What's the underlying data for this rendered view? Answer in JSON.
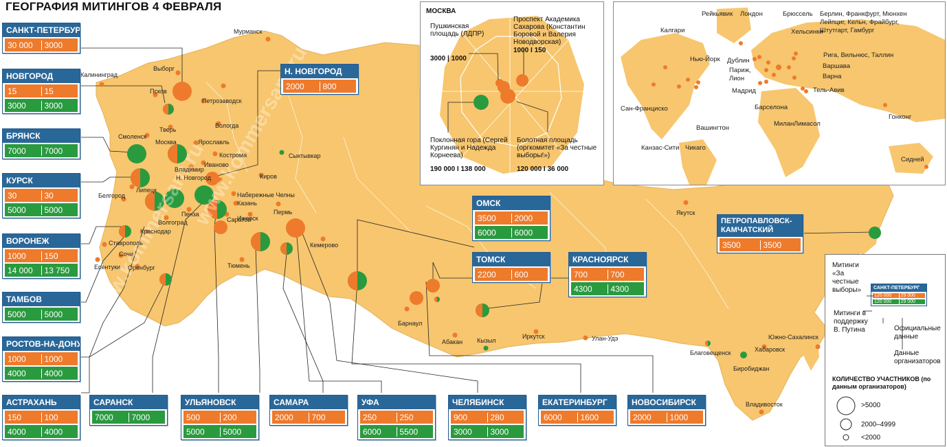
{
  "title": "ГЕОГРАФИЯ МИТИНГОВ  4  ФЕВРАЛЯ",
  "watermark": "www.kommersant.ru",
  "colors": {
    "orange": "#ee7a2b",
    "green": "#2a9a3f",
    "blue": "#2a6799",
    "land": "#f7c66e"
  },
  "boxes": [
    {
      "name": "САНКТ-ПЕТЕРБУРГ",
      "o": [
        "30 000",
        "3000"
      ]
    },
    {
      "name": "НОВГОРОД",
      "o": [
        "15",
        "15"
      ],
      "g": [
        "3000",
        "3000"
      ]
    },
    {
      "name": "БРЯНСК",
      "g": [
        "7000",
        "7000"
      ]
    },
    {
      "name": "КУРСК",
      "o": [
        "30",
        "30"
      ],
      "g": [
        "5000",
        "5000"
      ]
    },
    {
      "name": "ВОРОНЕЖ",
      "o": [
        "1000",
        "150"
      ],
      "g": [
        "14 000",
        "13 750"
      ]
    },
    {
      "name": "ТАМБОВ",
      "g": [
        "5000",
        "5000"
      ]
    },
    {
      "name": "РОСТОВ-НА-ДОНУ",
      "o": [
        "1000",
        "1000"
      ],
      "g": [
        "4000",
        "4000"
      ]
    },
    {
      "name": "АСТРАХАНЬ",
      "o": [
        "150",
        "100"
      ],
      "g": [
        "4000",
        "4000"
      ]
    },
    {
      "name": "САРАНСК",
      "g": [
        "7000",
        "7000"
      ]
    },
    {
      "name": "УЛЬЯНОВСК",
      "o": [
        "500",
        "200"
      ],
      "g": [
        "5000",
        "5000"
      ]
    },
    {
      "name": "САМАРА",
      "o": [
        "2000",
        "700"
      ]
    },
    {
      "name": "УФА",
      "o": [
        "250",
        "250"
      ],
      "g": [
        "6000",
        "5500"
      ]
    },
    {
      "name": "ЧЕЛЯБИНСК",
      "o": [
        "900",
        "280"
      ],
      "g": [
        "3000",
        "3000"
      ]
    },
    {
      "name": "ЕКАТЕРИНБУРГ",
      "o": [
        "6000",
        "1600"
      ]
    },
    {
      "name": "НОВОСИБИРСК",
      "o": [
        "2000",
        "1000"
      ]
    },
    {
      "name": "Н. НОВГОРОД",
      "o": [
        "2000",
        "800"
      ]
    },
    {
      "name": "ОМСК",
      "o": [
        "3500",
        "2000"
      ],
      "g": [
        "6000",
        "6000"
      ]
    },
    {
      "name": "ТОМСК",
      "o": [
        "2200",
        "600"
      ]
    },
    {
      "name": "КРАСНОЯРСК",
      "o": [
        "700",
        "700"
      ],
      "g": [
        "4300",
        "4300"
      ]
    },
    {
      "name": "ПЕТРОПАВЛОВСК-КАМЧАТСКИЙ",
      "o": [
        "3500",
        "3500"
      ]
    }
  ],
  "map_labels": [
    "Мурманск",
    "Калининград",
    "Выборг",
    "Псков",
    "Петрозаводск",
    "Смоленск",
    "Тверь",
    "Москва",
    "Ярославль",
    "Вологда",
    "Кострома",
    "Иваново",
    "Владимир",
    "Н. Новгород",
    "Сыктывкар",
    "Киров",
    "Липецк",
    "Белгород",
    "Набережные Челны",
    "Казань",
    "Пермь",
    "Ижевск",
    "Пенза",
    "Саратов",
    "Волгоград",
    "Краснодар",
    "Ставрополь",
    "Сочи",
    "Есентуки",
    "Оренбург",
    "Тюмень",
    "Кемерово",
    "Барнаул",
    "Абакан",
    "Кызыл",
    "Иркутск",
    "Улан-Удэ",
    "Якутск",
    "Благовещенск",
    "Хабаровск",
    "Биробиджан",
    "Южно-Сахалинск",
    "Владивосток"
  ],
  "moscow": {
    "title": "МОСКВА",
    "l1": "Пушкинская площадь (ЛДПР)",
    "v1": "3000  |  1000",
    "l2": "Проспект Академика Сахарова (Константин Боровой и Валерия Новодворская)",
    "v2": "1000  I  150",
    "l3": "Поклонная гора (Сергей Кургинян и Надежда Корнеева)",
    "v3": "190 000  I  138 000",
    "l4": "Болотная площадь (оргкомитет «За честные выборы!»)",
    "v4": "120 000  I  36 000"
  },
  "world_labels": [
    "Рейкьявик",
    "Лондон",
    "Брюссель",
    "Берлин, Франкфурт, Мюнхен Лейпциг, Кельн, Фрайбург, Штутгарт, Гамбург",
    "Хельсинки",
    "Рига, Вильнюс, Таллин",
    "Варшава",
    "Варна",
    "Тель-Авив",
    "Калгари",
    "Нью-Йорк",
    "Дублин",
    "Париж, Лион",
    "Мадрид",
    "Барселона",
    "Милан",
    "Лимасол",
    "Гонконг",
    "Сан-Франциско",
    "Канзас-Сити",
    "Чикаго",
    "Вашингтон",
    "Сидней"
  ],
  "legend": {
    "l1": "Митинги «За честные выборы»",
    "l2": "Митинги в поддержку В. Путина",
    "l3": "Официальные данные",
    "l4": "Данные организаторов",
    "sample_name": "САНКТ-ПЕТЕРБУРГ",
    "sample_o": [
      "120 000",
      "29 000"
    ],
    "sample_g": [
      "120 000",
      "29 000"
    ],
    "size_title": "КОЛИЧЕСТВО УЧАСТНИКОВ (по данным организаторов)",
    "s1": ">5000",
    "s2": "2000–4999",
    "s3": "<2000"
  }
}
